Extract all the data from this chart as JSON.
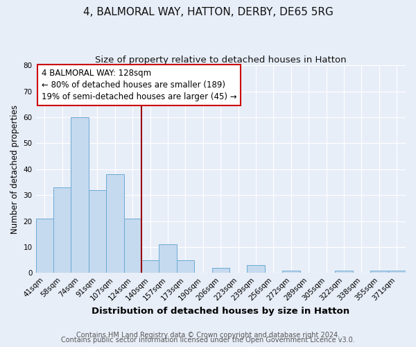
{
  "title": "4, BALMORAL WAY, HATTON, DERBY, DE65 5RG",
  "subtitle": "Size of property relative to detached houses in Hatton",
  "xlabel": "Distribution of detached houses by size in Hatton",
  "ylabel": "Number of detached properties",
  "bar_labels": [
    "41sqm",
    "58sqm",
    "74sqm",
    "91sqm",
    "107sqm",
    "124sqm",
    "140sqm",
    "157sqm",
    "173sqm",
    "190sqm",
    "206sqm",
    "223sqm",
    "239sqm",
    "256sqm",
    "272sqm",
    "289sqm",
    "305sqm",
    "322sqm",
    "338sqm",
    "355sqm",
    "371sqm"
  ],
  "bar_values": [
    21,
    33,
    60,
    32,
    38,
    21,
    5,
    11,
    5,
    0,
    2,
    0,
    3,
    0,
    1,
    0,
    0,
    1,
    0,
    1,
    1
  ],
  "bar_color": "#c5d9ef",
  "bar_edge_color": "#6aabd2",
  "ylim": [
    0,
    80
  ],
  "yticks": [
    0,
    10,
    20,
    30,
    40,
    50,
    60,
    70,
    80
  ],
  "property_line_color": "#990000",
  "annotation_title": "4 BALMORAL WAY: 128sqm",
  "annotation_line1": "← 80% of detached houses are smaller (189)",
  "annotation_line2": "19% of semi-detached houses are larger (45) →",
  "annotation_box_color": "#cc0000",
  "footer1": "Contains HM Land Registry data © Crown copyright and database right 2024.",
  "footer2": "Contains public sector information licensed under the Open Government Licence v3.0.",
  "bg_color": "#e8eef8",
  "plot_bg_color": "#e8eef8",
  "grid_color": "#ffffff",
  "title_fontsize": 11,
  "subtitle_fontsize": 9.5,
  "xlabel_fontsize": 9.5,
  "ylabel_fontsize": 8.5,
  "tick_fontsize": 7.5,
  "annot_fontsize": 8.5,
  "footer_fontsize": 7
}
